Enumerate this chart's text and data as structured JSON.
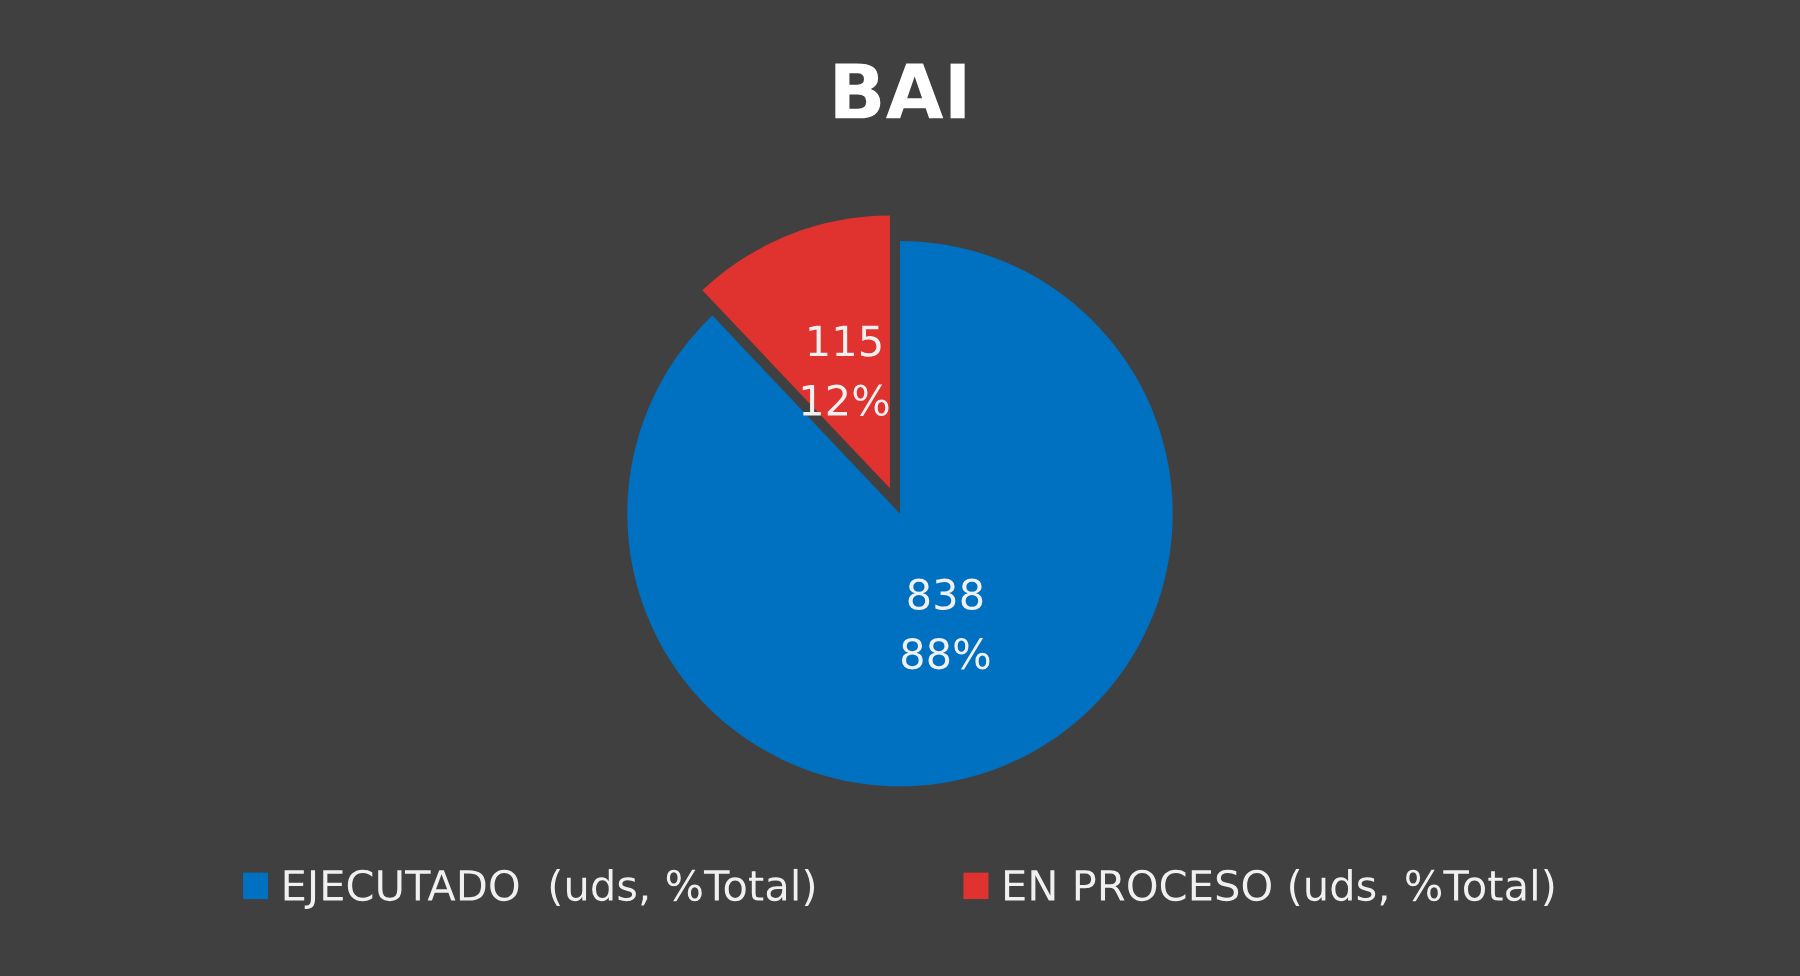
{
  "chart_data": {
    "type": "pie",
    "title": "BAI",
    "categories": [
      "EJECUTADO  (uds, %Total)",
      "EN PROCESO (uds, %Total)"
    ],
    "values": [
      838,
      115
    ],
    "colors": [
      "#0070c0",
      "#e0322e"
    ],
    "value_labels": [
      "838\n88%",
      "115\n12%"
    ],
    "legend": "bottom"
  }
}
